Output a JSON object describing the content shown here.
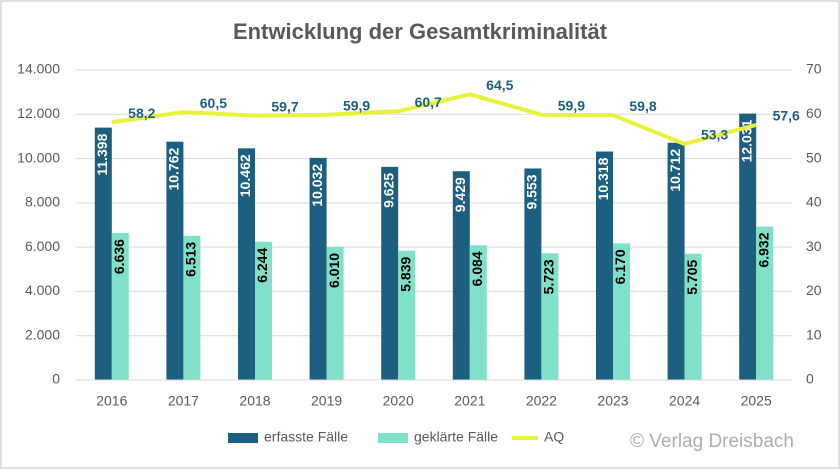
{
  "chart_data": {
    "type": "bar",
    "title": "Entwicklung der Gesamtkriminalität",
    "categories": [
      "2016",
      "2017",
      "2018",
      "2019",
      "2020",
      "2021",
      "2022",
      "2023",
      "2024",
      "2025"
    ],
    "series": [
      {
        "name": "erfasste Fälle",
        "type": "bar",
        "color": "#1c5f7e",
        "values": [
          11398,
          10762,
          10462,
          10032,
          9625,
          9429,
          9553,
          10318,
          10712,
          12031
        ],
        "value_labels": [
          "11.398",
          "10.762",
          "10.462",
          "10.032",
          "9.625",
          "9.429",
          "9.553",
          "10.318",
          "10.712",
          "12.031"
        ]
      },
      {
        "name": "geklärte Fälle",
        "type": "bar",
        "color": "#80e0c8",
        "values": [
          6636,
          6513,
          6244,
          6010,
          5839,
          6084,
          5723,
          6170,
          5705,
          6932
        ],
        "value_labels": [
          "6.636",
          "6.513",
          "6.244",
          "6.010",
          "5.839",
          "6.084",
          "5.723",
          "6.170",
          "5.705",
          "6.932"
        ]
      },
      {
        "name": "AQ",
        "type": "line",
        "axis": "y2",
        "color": "#e8f23a",
        "values": [
          58.2,
          60.5,
          59.7,
          59.9,
          60.7,
          64.5,
          59.9,
          59.8,
          53.3,
          57.6
        ],
        "value_labels": [
          "58,2",
          "60,5",
          "59,7",
          "59,9",
          "60,7",
          "64,5",
          "59,9",
          "59,8",
          "53,3",
          "57,6"
        ]
      }
    ],
    "ylim": [
      0,
      14000
    ],
    "yticks": [
      0,
      {
        "value": 2000,
        "label": "2.000"
      },
      {
        "value": 4000,
        "label": "4.000"
      },
      {
        "value": 6000,
        "label": "6.000"
      },
      {
        "value": 8000,
        "label": "8.000"
      },
      {
        "value": 10000,
        "label": "10.000"
      },
      {
        "value": 12000,
        "label": "12.000"
      },
      {
        "value": 14000,
        "label": "14.000"
      }
    ],
    "y2lim": [
      0,
      70
    ],
    "y2ticks": [
      0,
      10,
      20,
      30,
      40,
      50,
      60,
      70
    ],
    "grid": true,
    "legend": "bottom"
  },
  "watermark": "© Verlag Dreisbach"
}
